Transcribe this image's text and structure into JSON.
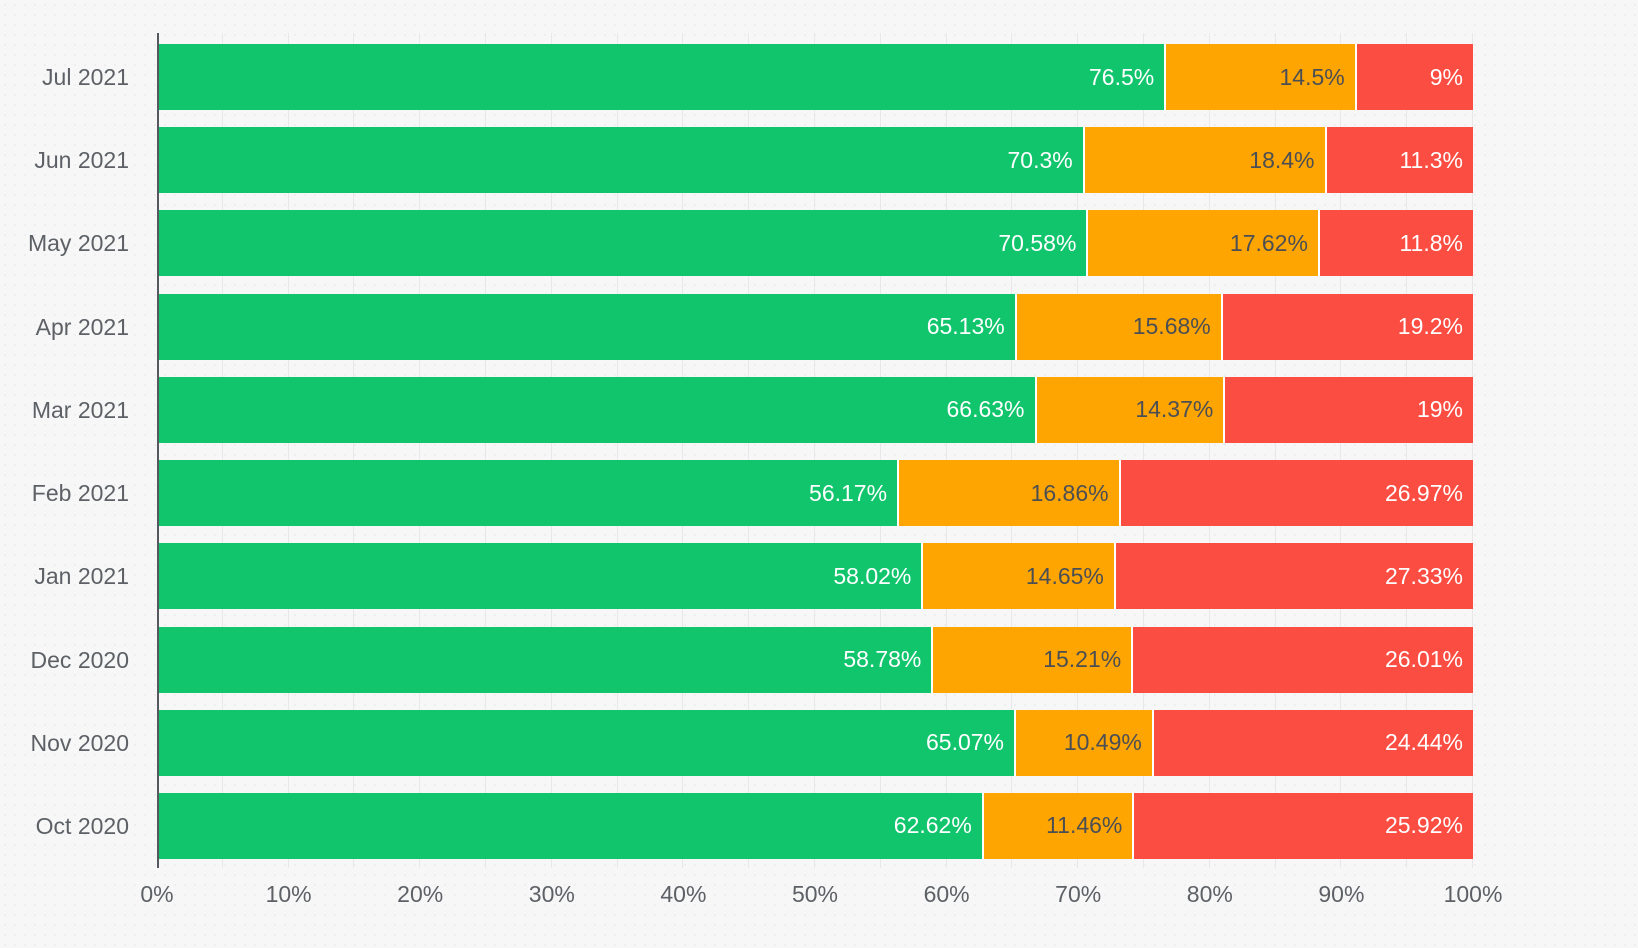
{
  "chart_data": {
    "type": "bar",
    "orientation": "horizontal",
    "stacked": true,
    "title": "",
    "xlabel": "",
    "ylabel": "",
    "unit": "%",
    "xlim": [
      0,
      100
    ],
    "x_ticks": [
      "0%",
      "10%",
      "20%",
      "30%",
      "40%",
      "50%",
      "60%",
      "70%",
      "80%",
      "90%",
      "100%"
    ],
    "x_tick_step_pct": 10,
    "minor_gridline_step_pct": 5,
    "grid": true,
    "legend": "none",
    "categories": [
      "Jul 2021",
      "Jun 2021",
      "May 2021",
      "Apr 2021",
      "Mar 2021",
      "Feb 2021",
      "Jan 2021",
      "Dec 2020",
      "Nov 2020",
      "Oct 2020"
    ],
    "series": [
      {
        "name": "green",
        "color": "#11c56d",
        "label_color": "#ffffff",
        "values": [
          76.5,
          70.3,
          70.58,
          65.13,
          66.63,
          56.17,
          58.02,
          58.78,
          65.07,
          62.62
        ],
        "labels": [
          "76.5%",
          "70.3%",
          "70.58%",
          "65.13%",
          "66.63%",
          "56.17%",
          "58.02%",
          "58.78%",
          "65.07%",
          "62.62%"
        ]
      },
      {
        "name": "orange",
        "color": "#ffa502",
        "label_color": "#4b4f54",
        "values": [
          14.5,
          18.4,
          17.62,
          15.68,
          14.37,
          16.86,
          14.65,
          15.21,
          10.49,
          11.46
        ],
        "labels": [
          "14.5%",
          "18.4%",
          "17.62%",
          "15.68%",
          "14.37%",
          "16.86%",
          "14.65%",
          "15.21%",
          "10.49%",
          "11.46%"
        ]
      },
      {
        "name": "red",
        "color": "#fb4d42",
        "label_color": "#ffffff",
        "values": [
          9,
          11.3,
          11.8,
          19.2,
          19,
          26.97,
          27.33,
          26.01,
          24.44,
          25.92
        ],
        "labels": [
          "9%",
          "11.3%",
          "11.8%",
          "19.2%",
          "19%",
          "26.97%",
          "27.33%",
          "26.01%",
          "24.44%",
          "25.92%"
        ]
      }
    ],
    "colors": {
      "background": "#f7f7f8",
      "gridline": "#e8e8ea",
      "axis_line": "#55585e",
      "category_label": "#5d6166",
      "tick_label": "#5d6166"
    }
  }
}
